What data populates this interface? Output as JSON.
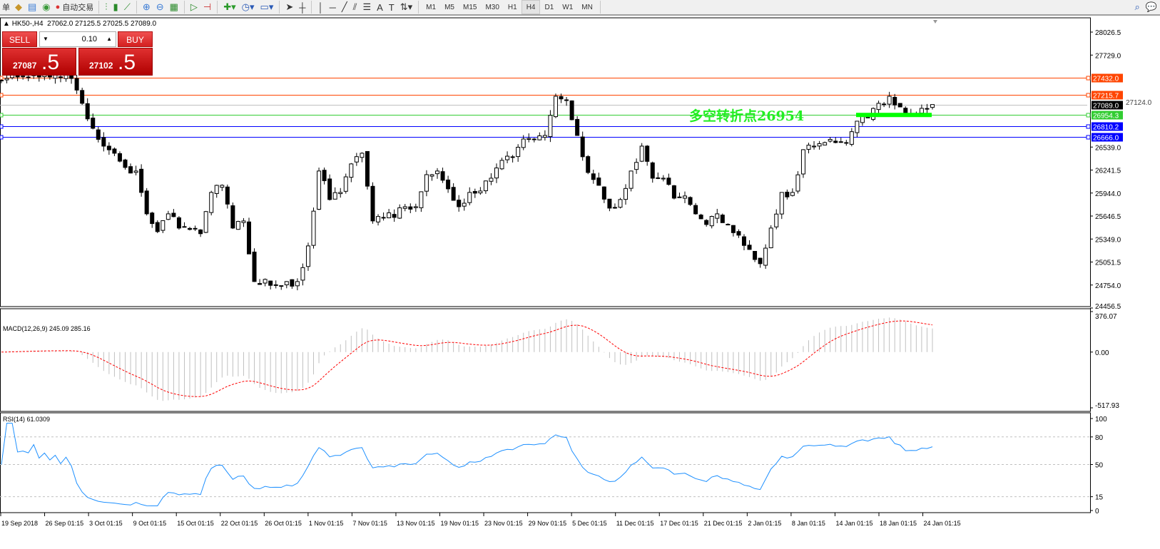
{
  "toolbar": {
    "items": [
      {
        "name": "menu-fragment",
        "label": "单"
      },
      {
        "name": "folder-icon",
        "label": ""
      },
      {
        "name": "terminal-icon",
        "label": ""
      },
      {
        "name": "signal-icon",
        "label": ""
      },
      {
        "name": "auto-trading",
        "label": "自动交易"
      }
    ],
    "timeframes": [
      "M1",
      "M5",
      "M15",
      "M30",
      "H1",
      "H4",
      "D1",
      "W1",
      "MN"
    ],
    "active_timeframe": "H4"
  },
  "chart_header": {
    "symbol": "HK50-,H4",
    "open": "27062.0",
    "high": "27125.5",
    "low": "27025.5",
    "close": "27089.0"
  },
  "trade_panel": {
    "sell_label": "SELL",
    "buy_label": "BUY",
    "lot": "0.10",
    "sell_price_main": "27087",
    "sell_price_frac": ".5",
    "buy_price_main": "27102",
    "buy_price_frac": ".5"
  },
  "annotation": {
    "text": "多空转折点26954",
    "color": "#22ee22"
  },
  "price_axis": {
    "labels": [
      "28026.5",
      "27729.0",
      "26539.0",
      "26241.5",
      "25944.0",
      "25646.5",
      "25349.0",
      "25051.5",
      "24754.0",
      "24456.5"
    ],
    "min": 24456.5,
    "max": 28026.5
  },
  "hlines": [
    {
      "price": 27432.0,
      "label": "27432.0",
      "color": "#ff4500"
    },
    {
      "price": 27215.7,
      "label": "27215.7",
      "color": "#ff4500"
    },
    {
      "price": 27089.0,
      "label": "27089.0",
      "color": "#000000",
      "line_color": "#c0c0c0"
    },
    {
      "price": 26954.3,
      "label": "26954.3",
      "color": "#32cd32"
    },
    {
      "price": 26810.2,
      "label": "26810.2",
      "color": "#0000ff"
    },
    {
      "price": 26666.0,
      "label": "26666.0",
      "color": "#0000ff"
    }
  ],
  "hidden_label": "27124.0",
  "chart_data": {
    "type": "candlestick",
    "symbol": "HK50-",
    "timeframe": "H4",
    "approx_closes": [
      27381,
      27427,
      27446,
      27446,
      27446,
      27446,
      27436,
      27427,
      27105,
      26782,
      26551,
      26459,
      26275,
      26229,
      25675,
      25445,
      25675,
      25491,
      25473,
      25418,
      25952,
      26044,
      25491,
      25583,
      24799,
      24827,
      24753,
      24799,
      24799,
      25260,
      26229,
      25860,
      25952,
      26321,
      26459,
      25583,
      25629,
      25629,
      25767,
      25767,
      26182,
      26229,
      25998,
      25767,
      25952,
      25970,
      26136,
      26367,
      26413,
      26643,
      26643,
      26689,
      27196,
      27150,
      26689,
      26210,
      26044,
      25749,
      25860,
      26229,
      26551,
      26136,
      26136,
      25878,
      25906,
      25675,
      25537,
      25675,
      25537,
      25399,
      25214,
      25030,
      25491,
      25952,
      25952,
      26505,
      26551,
      26597,
      26597,
      26597,
      26874,
      26920,
      27105,
      27196,
      27058,
      26966,
      27040,
      27089
    ],
    "ylim": [
      24456.5,
      28026.5
    ]
  },
  "macd": {
    "label": "MACD(12,26,9) 245.09 285.16",
    "axis": [
      "376.07",
      "0.00",
      "-517.93"
    ],
    "max": 376.07,
    "min": -517.93,
    "hist_color": "#c0c0c0",
    "signal_color": "#ff0000"
  },
  "rsi": {
    "label": "RSI(14) 61.0309",
    "axis": [
      "100",
      "80",
      "50",
      "15",
      "0"
    ],
    "levels": [
      80,
      50,
      15
    ],
    "color": "#1e90ff"
  },
  "time_axis": [
    "19 Sep 2018",
    "26 Sep 01:15",
    "3 Oct 01:15",
    "9 Oct 01:15",
    "15 Oct 01:15",
    "22 Oct 01:15",
    "26 Oct 01:15",
    "1 Nov 01:15",
    "7 Nov 01:15",
    "13 Nov 01:15",
    "19 Nov 01:15",
    "23 Nov 01:15",
    "29 Nov 01:15",
    "5 Dec 01:15",
    "11 Dec 01:15",
    "17 Dec 01:15",
    "21 Dec 01:15",
    "2 Jan 01:15",
    "8 Jan 01:15",
    "14 Jan 01:15",
    "18 Jan 01:15",
    "24 Jan 01:15"
  ]
}
